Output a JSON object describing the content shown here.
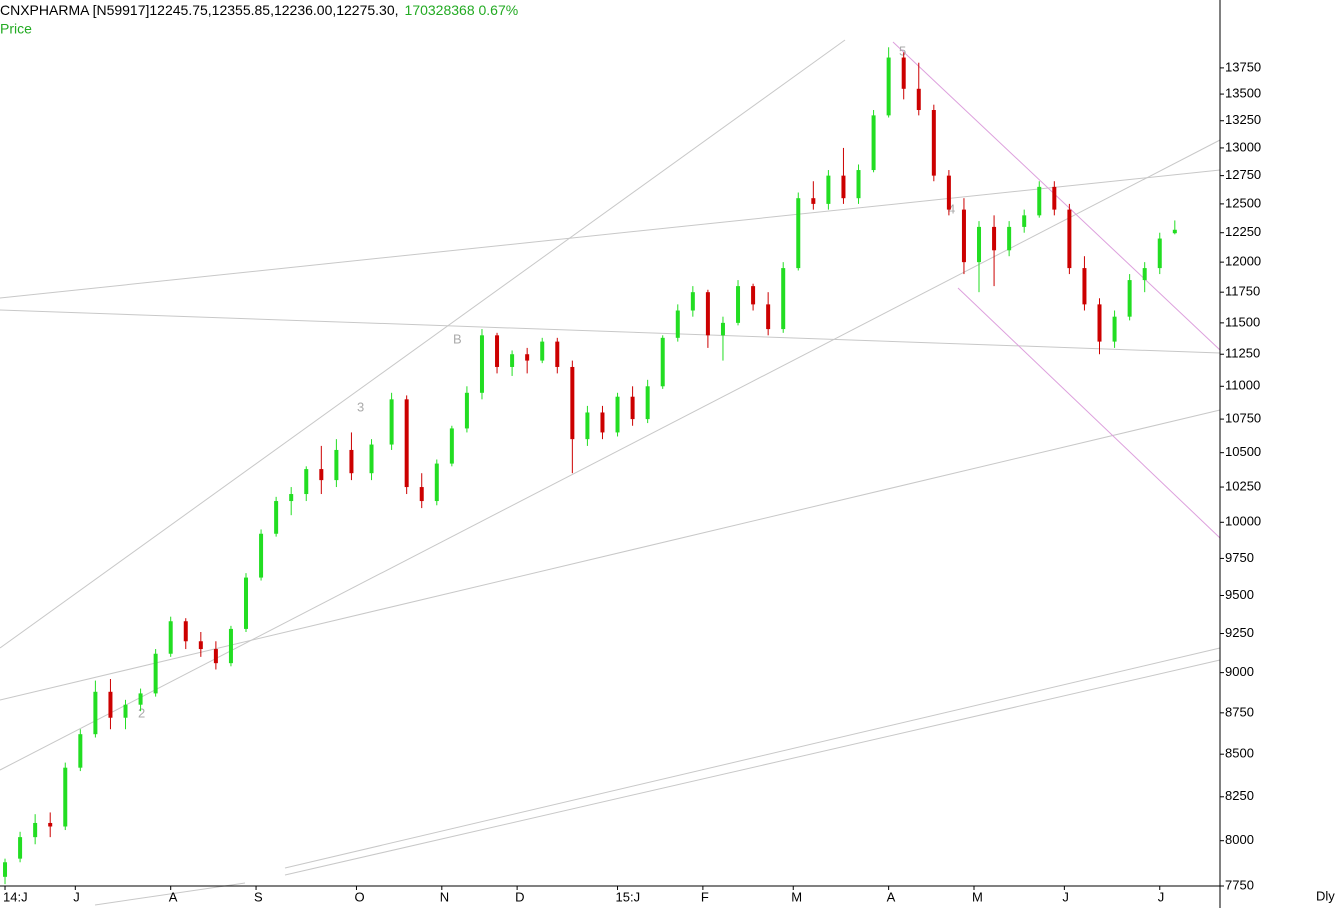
{
  "header": {
    "symbol_line": "CNXPHARMA [N59917]12245.75,12355.85,12236.00,12275.30,",
    "volume_change": "170328368  0.67%",
    "series_label": "Price"
  },
  "chart_data": {
    "type": "candlestick",
    "log_scale": true,
    "x_axis_label": "Dly",
    "up_color": "#22dd22",
    "down_color": "#cc0000",
    "xlim": [
      0,
      243
    ],
    "ylim": [
      7750,
      14420
    ],
    "xticks": [
      {
        "value": 1,
        "label": "14:J"
      },
      {
        "value": 15,
        "label": "J"
      },
      {
        "value": 34,
        "label": "A"
      },
      {
        "value": 51,
        "label": "S"
      },
      {
        "value": 71,
        "label": "O"
      },
      {
        "value": 88,
        "label": "N"
      },
      {
        "value": 103,
        "label": "D"
      },
      {
        "value": 123,
        "label": "15:J"
      },
      {
        "value": 140,
        "label": "F"
      },
      {
        "value": 158,
        "label": "M"
      },
      {
        "value": 177,
        "label": "A"
      },
      {
        "value": 194,
        "label": "M"
      },
      {
        "value": 212,
        "label": "J"
      },
      {
        "value": 231,
        "label": "J"
      }
    ],
    "yticks": [
      7750,
      8000,
      8250,
      8500,
      8750,
      9000,
      9250,
      9500,
      9750,
      10000,
      10250,
      10500,
      10750,
      11000,
      11250,
      11500,
      11750,
      12000,
      12250,
      12500,
      12750,
      13000,
      13250,
      13500,
      13750
    ],
    "annotations": [
      "2",
      "3",
      "B",
      "5",
      "4"
    ],
    "x": [
      1,
      4,
      7,
      10,
      13,
      16,
      19,
      22,
      25,
      28,
      31,
      34,
      37,
      40,
      43,
      46,
      49,
      52,
      55,
      58,
      61,
      64,
      67,
      70,
      74,
      78,
      81,
      84,
      87,
      90,
      93,
      96,
      99,
      102,
      105,
      108,
      111,
      114,
      117,
      120,
      123,
      126,
      129,
      132,
      135,
      138,
      141,
      144,
      147,
      150,
      153,
      156,
      159,
      162,
      165,
      168,
      171,
      174,
      177,
      180,
      183,
      186,
      189,
      192,
      195,
      198,
      201,
      204,
      207,
      210,
      213,
      216,
      219,
      222,
      225,
      228,
      231,
      234
    ],
    "open": [
      7800,
      7900,
      8020,
      8100,
      8080,
      8420,
      8620,
      8880,
      8720,
      8800,
      8870,
      9120,
      9330,
      9200,
      9150,
      9060,
      9280,
      9620,
      9920,
      10150,
      10200,
      10380,
      10300,
      10520,
      10350,
      10560,
      10900,
      10250,
      10150,
      10420,
      10680,
      10950,
      11400,
      11150,
      11250,
      11200,
      11350,
      11150,
      10600,
      10800,
      10650,
      10920,
      10750,
      11000,
      11380,
      11600,
      11750,
      11400,
      11500,
      11800,
      11650,
      11450,
      11950,
      12550,
      12500,
      12750,
      12550,
      12800,
      13300,
      13850,
      13550,
      13350,
      12750,
      12450,
      12000,
      12300,
      12100,
      12300,
      12400,
      12650,
      12450,
      11950,
      11650,
      11350,
      11550,
      11850,
      11950,
      12245.75
    ],
    "high": [
      7900,
      8050,
      8150,
      8160,
      8450,
      8650,
      8950,
      8960,
      8830,
      8900,
      9150,
      9360,
      9350,
      9260,
      9200,
      9300,
      9650,
      9950,
      10180,
      10250,
      10400,
      10550,
      10600,
      10650,
      10600,
      10950,
      10930,
      10350,
      10450,
      10700,
      11000,
      11450,
      11420,
      11280,
      11300,
      11380,
      11380,
      11200,
      10850,
      10850,
      10950,
      11000,
      11050,
      11400,
      11650,
      11800,
      11770,
      11550,
      11850,
      11820,
      11750,
      12000,
      12600,
      12700,
      12800,
      13000,
      12850,
      13350,
      13950,
      13900,
      13800,
      13400,
      12800,
      12550,
      12350,
      12400,
      12350,
      12450,
      12700,
      12700,
      12500,
      12050,
      11700,
      11600,
      11900,
      12000,
      12250,
      12355.85
    ],
    "low": [
      7760,
      7880,
      7980,
      8020,
      8060,
      8400,
      8600,
      8650,
      8650,
      8760,
      8850,
      9100,
      9150,
      9100,
      9020,
      9040,
      9260,
      9600,
      9900,
      10050,
      10150,
      10200,
      10250,
      10300,
      10300,
      10520,
      10200,
      10100,
      10120,
      10400,
      10650,
      10900,
      11100,
      11080,
      11100,
      11180,
      11100,
      10350,
      10550,
      10600,
      10620,
      10700,
      10720,
      10980,
      11350,
      11550,
      11300,
      11200,
      11480,
      11600,
      11400,
      11420,
      11930,
      12450,
      12450,
      12500,
      12500,
      12780,
      13280,
      13450,
      13300,
      12700,
      12400,
      11900,
      11750,
      11800,
      12050,
      12250,
      12380,
      12400,
      11900,
      11600,
      11250,
      11300,
      11520,
      11750,
      11900,
      12236.0
    ],
    "close": [
      7880,
      8020,
      8100,
      8080,
      8420,
      8620,
      8880,
      8720,
      8800,
      8870,
      9120,
      9330,
      9200,
      9150,
      9060,
      9280,
      9620,
      9920,
      10150,
      10200,
      10380,
      10300,
      10520,
      10350,
      10560,
      10900,
      10250,
      10150,
      10420,
      10680,
      10950,
      11400,
      11150,
      11250,
      11200,
      11350,
      11150,
      10600,
      10800,
      10650,
      10920,
      10750,
      11000,
      11380,
      11600,
      11750,
      11400,
      11500,
      11800,
      11650,
      11450,
      11950,
      12550,
      12500,
      12750,
      12550,
      12800,
      13300,
      13850,
      13550,
      13350,
      12750,
      12450,
      12000,
      12300,
      12100,
      12300,
      12400,
      12650,
      12450,
      11950,
      11650,
      11350,
      11550,
      11850,
      11950,
      12200,
      12275.3
    ]
  }
}
